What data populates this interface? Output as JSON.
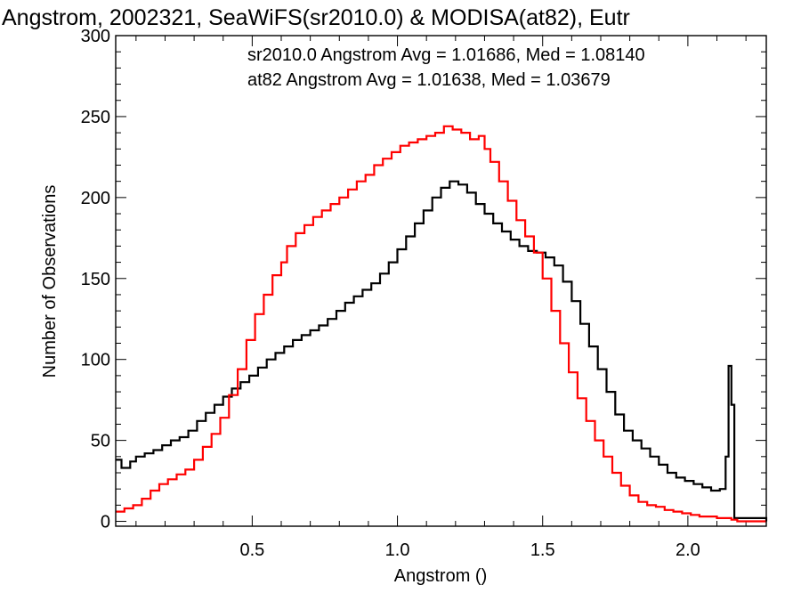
{
  "chart_data": {
    "type": "histogram-step",
    "title": "Angstrom, 2002321, SeaWiFS(sr2010.0) & MODISA(at82), Eutr",
    "xlabel": "Angstrom ()",
    "ylabel": "Number of Observations",
    "xlim": [
      0.03,
      2.27
    ],
    "ylim": [
      -3,
      300
    ],
    "x_ticks": [
      0.5,
      1.0,
      1.5,
      2.0
    ],
    "x_tick_labels": [
      "0.5",
      "1.0",
      "1.5",
      "2.0"
    ],
    "y_ticks": [
      0,
      50,
      100,
      150,
      200,
      250,
      300
    ],
    "y_tick_labels": [
      "0",
      "50",
      "100",
      "150",
      "200",
      "250",
      "300"
    ],
    "grid": false,
    "series": [
      {
        "name": "sr2010.0",
        "color": "#000000",
        "stats": "sr2010.0 Angstrom Avg = 1.01686, Med = 1.08140",
        "points": [
          [
            0.03,
            38
          ],
          [
            0.05,
            33
          ],
          [
            0.08,
            37
          ],
          [
            0.1,
            40
          ],
          [
            0.13,
            42
          ],
          [
            0.16,
            44
          ],
          [
            0.19,
            47
          ],
          [
            0.22,
            50
          ],
          [
            0.25,
            52
          ],
          [
            0.28,
            56
          ],
          [
            0.31,
            62
          ],
          [
            0.34,
            67
          ],
          [
            0.37,
            72
          ],
          [
            0.4,
            77
          ],
          [
            0.43,
            82
          ],
          [
            0.46,
            86
          ],
          [
            0.49,
            90
          ],
          [
            0.52,
            95
          ],
          [
            0.55,
            100
          ],
          [
            0.58,
            104
          ],
          [
            0.61,
            108
          ],
          [
            0.64,
            112
          ],
          [
            0.67,
            115
          ],
          [
            0.7,
            118
          ],
          [
            0.73,
            121
          ],
          [
            0.76,
            125
          ],
          [
            0.79,
            130
          ],
          [
            0.82,
            135
          ],
          [
            0.85,
            139
          ],
          [
            0.88,
            143
          ],
          [
            0.91,
            147
          ],
          [
            0.94,
            153
          ],
          [
            0.97,
            160
          ],
          [
            1.0,
            168
          ],
          [
            1.03,
            176
          ],
          [
            1.06,
            184
          ],
          [
            1.09,
            192
          ],
          [
            1.12,
            200
          ],
          [
            1.15,
            206
          ],
          [
            1.18,
            210
          ],
          [
            1.21,
            208
          ],
          [
            1.24,
            203
          ],
          [
            1.27,
            196
          ],
          [
            1.3,
            190
          ],
          [
            1.33,
            184
          ],
          [
            1.36,
            179
          ],
          [
            1.39,
            174
          ],
          [
            1.42,
            170
          ],
          [
            1.45,
            167
          ],
          [
            1.48,
            166
          ],
          [
            1.51,
            163
          ],
          [
            1.54,
            158
          ],
          [
            1.57,
            148
          ],
          [
            1.6,
            136
          ],
          [
            1.63,
            122
          ],
          [
            1.66,
            108
          ],
          [
            1.69,
            94
          ],
          [
            1.72,
            80
          ],
          [
            1.75,
            66
          ],
          [
            1.78,
            56
          ],
          [
            1.81,
            50
          ],
          [
            1.84,
            45
          ],
          [
            1.87,
            40
          ],
          [
            1.9,
            35
          ],
          [
            1.93,
            30
          ],
          [
            1.96,
            27
          ],
          [
            1.99,
            25
          ],
          [
            2.02,
            23
          ],
          [
            2.05,
            21
          ],
          [
            2.08,
            19
          ],
          [
            2.11,
            20
          ],
          [
            2.13,
            40
          ],
          [
            2.14,
            96
          ],
          [
            2.15,
            72
          ],
          [
            2.16,
            2
          ],
          [
            2.27,
            0
          ]
        ]
      },
      {
        "name": "at82",
        "color": "#ff0000",
        "stats": "at82 Angstrom Avg = 1.01638, Med = 1.03679",
        "points": [
          [
            0.03,
            6
          ],
          [
            0.06,
            8
          ],
          [
            0.09,
            10
          ],
          [
            0.12,
            14
          ],
          [
            0.15,
            19
          ],
          [
            0.18,
            23
          ],
          [
            0.21,
            26
          ],
          [
            0.24,
            29
          ],
          [
            0.27,
            32
          ],
          [
            0.3,
            38
          ],
          [
            0.33,
            46
          ],
          [
            0.36,
            54
          ],
          [
            0.39,
            64
          ],
          [
            0.42,
            78
          ],
          [
            0.45,
            94
          ],
          [
            0.48,
            112
          ],
          [
            0.51,
            128
          ],
          [
            0.54,
            140
          ],
          [
            0.57,
            152
          ],
          [
            0.6,
            160
          ],
          [
            0.62,
            170
          ],
          [
            0.65,
            178
          ],
          [
            0.68,
            183
          ],
          [
            0.71,
            188
          ],
          [
            0.74,
            192
          ],
          [
            0.77,
            196
          ],
          [
            0.8,
            200
          ],
          [
            0.83,
            205
          ],
          [
            0.86,
            210
          ],
          [
            0.89,
            214
          ],
          [
            0.92,
            220
          ],
          [
            0.95,
            224
          ],
          [
            0.98,
            228
          ],
          [
            1.01,
            232
          ],
          [
            1.04,
            234
          ],
          [
            1.07,
            236
          ],
          [
            1.1,
            238
          ],
          [
            1.13,
            240
          ],
          [
            1.16,
            244
          ],
          [
            1.19,
            242
          ],
          [
            1.22,
            240
          ],
          [
            1.25,
            236
          ],
          [
            1.28,
            238
          ],
          [
            1.3,
            230
          ],
          [
            1.32,
            222
          ],
          [
            1.35,
            210
          ],
          [
            1.38,
            198
          ],
          [
            1.41,
            186
          ],
          [
            1.44,
            176
          ],
          [
            1.47,
            166
          ],
          [
            1.5,
            150
          ],
          [
            1.53,
            130
          ],
          [
            1.56,
            110
          ],
          [
            1.59,
            92
          ],
          [
            1.62,
            76
          ],
          [
            1.65,
            62
          ],
          [
            1.68,
            50
          ],
          [
            1.71,
            40
          ],
          [
            1.74,
            30
          ],
          [
            1.77,
            22
          ],
          [
            1.8,
            16
          ],
          [
            1.83,
            12
          ],
          [
            1.86,
            10
          ],
          [
            1.89,
            9
          ],
          [
            1.92,
            7
          ],
          [
            1.95,
            6
          ],
          [
            1.98,
            5
          ],
          [
            2.01,
            4
          ],
          [
            2.04,
            3
          ],
          [
            2.07,
            3
          ],
          [
            2.1,
            2
          ],
          [
            2.13,
            2
          ],
          [
            2.15,
            1
          ],
          [
            2.17,
            0
          ],
          [
            2.27,
            0
          ]
        ]
      }
    ]
  }
}
